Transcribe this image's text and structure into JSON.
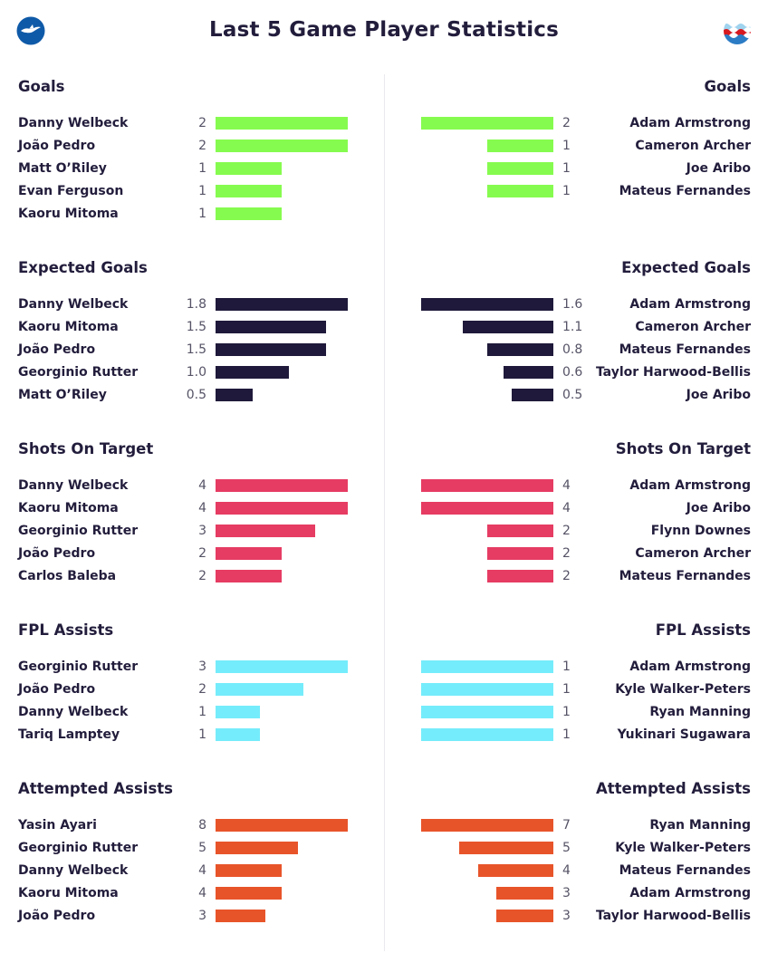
{
  "title": "Last 5 Game Player Statistics",
  "colors": {
    "goals": "#86fb4f",
    "expected_goals": "#1f1a3b",
    "shots_on_target": "#e63c63",
    "fpl_assists": "#75ecfb",
    "attempted_assists": "#e8542a"
  },
  "chart_data": {
    "type": "bar",
    "left_team": {
      "logo": "brighton-seagull-icon",
      "sections": [
        {
          "key": "goals",
          "title": "Goals",
          "max": 2,
          "players": [
            "Danny Welbeck",
            "João Pedro",
            "Matt O’Riley",
            "Evan Ferguson",
            "Kaoru Mitoma"
          ],
          "values": [
            2,
            2,
            1,
            1,
            1
          ],
          "labels": [
            "2",
            "2",
            "1",
            "1",
            "1"
          ]
        },
        {
          "key": "expected_goals",
          "title": "Expected Goals",
          "max": 1.8,
          "players": [
            "Danny Welbeck",
            "Kaoru Mitoma",
            "João Pedro",
            "Georginio Rutter",
            "Matt O’Riley"
          ],
          "values": [
            1.8,
            1.5,
            1.5,
            1.0,
            0.5
          ],
          "labels": [
            "1.8",
            "1.5",
            "1.5",
            "1.0",
            "0.5"
          ]
        },
        {
          "key": "shots_on_target",
          "title": "Shots On Target",
          "max": 4,
          "players": [
            "Danny Welbeck",
            "Kaoru Mitoma",
            "Georginio Rutter",
            "João Pedro",
            "Carlos Baleba"
          ],
          "values": [
            4,
            4,
            3,
            2,
            2
          ],
          "labels": [
            "4",
            "4",
            "3",
            "2",
            "2"
          ]
        },
        {
          "key": "fpl_assists",
          "title": "FPL Assists",
          "max": 3,
          "players": [
            "Georginio Rutter",
            "João Pedro",
            "Danny Welbeck",
            "Tariq Lamptey"
          ],
          "values": [
            3,
            2,
            1,
            1
          ],
          "labels": [
            "3",
            "2",
            "1",
            "1"
          ]
        },
        {
          "key": "attempted_assists",
          "title": "Attempted Assists",
          "max": 8,
          "players": [
            "Yasin Ayari",
            "Georginio Rutter",
            "Danny Welbeck",
            "Kaoru Mitoma",
            "João Pedro"
          ],
          "values": [
            8,
            5,
            4,
            4,
            3
          ],
          "labels": [
            "8",
            "5",
            "4",
            "4",
            "3"
          ]
        }
      ]
    },
    "right_team": {
      "logo": "southampton-waves-icon",
      "sections": [
        {
          "key": "goals",
          "title": "Goals",
          "max": 2,
          "players": [
            "Adam Armstrong",
            "Cameron Archer",
            "Joe Aribo",
            "Mateus Fernandes"
          ],
          "values": [
            2,
            1,
            1,
            1
          ],
          "labels": [
            "2",
            "1",
            "1",
            "1"
          ]
        },
        {
          "key": "expected_goals",
          "title": "Expected Goals",
          "max": 1.6,
          "players": [
            "Adam Armstrong",
            "Cameron Archer",
            "Mateus Fernandes",
            "Taylor Harwood-Bellis",
            "Joe Aribo"
          ],
          "values": [
            1.6,
            1.1,
            0.8,
            0.6,
            0.5
          ],
          "labels": [
            "1.6",
            "1.1",
            "0.8",
            "0.6",
            "0.5"
          ]
        },
        {
          "key": "shots_on_target",
          "title": "Shots On Target",
          "max": 4,
          "players": [
            "Adam Armstrong",
            "Joe Aribo",
            "Flynn Downes",
            "Cameron Archer",
            "Mateus Fernandes"
          ],
          "values": [
            4,
            4,
            2,
            2,
            2
          ],
          "labels": [
            "4",
            "4",
            "2",
            "2",
            "2"
          ]
        },
        {
          "key": "fpl_assists",
          "title": "FPL Assists",
          "max": 1,
          "players": [
            "Adam Armstrong",
            "Kyle Walker-Peters",
            "Ryan Manning",
            "Yukinari Sugawara"
          ],
          "values": [
            1,
            1,
            1,
            1
          ],
          "labels": [
            "1",
            "1",
            "1",
            "1"
          ]
        },
        {
          "key": "attempted_assists",
          "title": "Attempted Assists",
          "max": 7,
          "players": [
            "Ryan Manning",
            "Kyle Walker-Peters",
            "Mateus Fernandes",
            "Adam Armstrong",
            "Taylor Harwood-Bellis"
          ],
          "values": [
            7,
            5,
            4,
            3,
            3
          ],
          "labels": [
            "7",
            "5",
            "4",
            "3",
            "3"
          ]
        }
      ]
    }
  }
}
